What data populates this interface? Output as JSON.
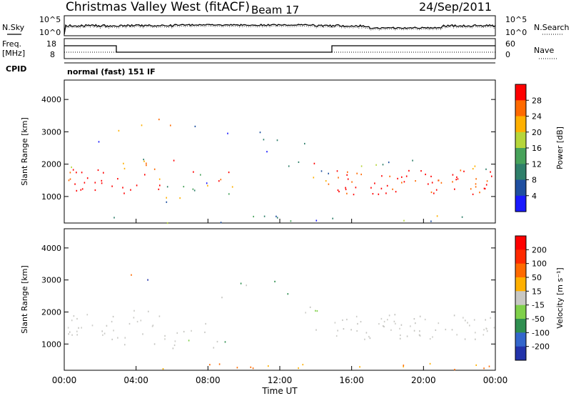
{
  "header": {
    "title": "Christmas Valley West (fitACF)",
    "beam": "Beam 17",
    "date": "24/Sep/2011"
  },
  "strips": {
    "nsky_label": "N.Sky",
    "nsearch_label": "N.Search",
    "noise_ticks": [
      "10^5",
      "10^0"
    ],
    "freq_label_1": "Freq.",
    "freq_label_2": "[MHz]",
    "freq_ticks": [
      "18",
      "8"
    ],
    "nave_label": "Nave",
    "nave_ticks": [
      "60",
      "0"
    ],
    "cpid_label": "CPID",
    "cpid_text": "normal (fast) 151 IF"
  },
  "chart_data": [
    {
      "type": "heatmap",
      "name": "power",
      "ylabel": "Slant Range [km]",
      "ylim": [
        180,
        4600
      ],
      "y_ticks": [
        1000,
        2000,
        3000,
        4000
      ],
      "colorbar_label": "Power [dB]",
      "colorbar_ticks": [
        "4",
        "8",
        "12",
        "16",
        "20",
        "24",
        "28"
      ],
      "colorbar_colors": [
        "#1a1aff",
        "#1f4fa0",
        "#2f7f6a",
        "#47a25a",
        "#b6d63a",
        "#ffb000",
        "#ff6a00",
        "#ff0000"
      ]
    },
    {
      "type": "heatmap",
      "name": "velocity",
      "ylabel": "Slant Range [km]",
      "ylim": [
        180,
        4600
      ],
      "y_ticks": [
        1000,
        2000,
        3000,
        4000
      ],
      "colorbar_label": "Velocity [m s⁻¹]",
      "colorbar_ticks": [
        "200",
        "100",
        "50",
        "15",
        "-15",
        "-50",
        "-100",
        "-200"
      ],
      "colorbar_colors": [
        "#2233aa",
        "#3366cc",
        "#2f8f50",
        "#7fd04a",
        "#c8c8c4",
        "#ffb000",
        "#ff6a00",
        "#ff2a00",
        "#ff0000"
      ]
    }
  ],
  "time_axis": {
    "xlabel": "Time UT",
    "ticks": [
      "00:00",
      "04:00",
      "08:00",
      "12:00",
      "16:00",
      "20:00",
      "00:00"
    ]
  }
}
